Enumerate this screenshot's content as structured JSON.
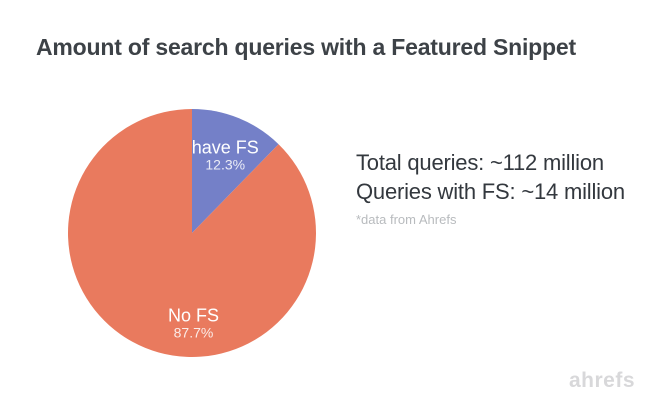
{
  "title": "Amount of search queries with a Featured Snippet",
  "chart_data": {
    "type": "pie",
    "labels": [
      "have FS",
      "No FS"
    ],
    "values": [
      12.3,
      87.7
    ],
    "value_labels": [
      "12.3%",
      "87.7%"
    ],
    "colors": [
      "#7480c8",
      "#e97a5e"
    ],
    "start_angle_deg": 0,
    "direction": "clockwise",
    "label_color": "#ffffff",
    "legend_position": "none",
    "title": "Amount of search queries with a Featured Snippet"
  },
  "stats": {
    "line1": "Total queries: ~112 million",
    "line2": "Queries with FS: ~14 million",
    "footnote": "*data from Ahrefs"
  },
  "watermark": "ahrefs",
  "colors": {
    "background": "#ffffff",
    "title_text": "#3d4247",
    "stats_text": "#33383e",
    "footnote_text": "#b8bbbe",
    "watermark_text": "#d8d8da"
  }
}
